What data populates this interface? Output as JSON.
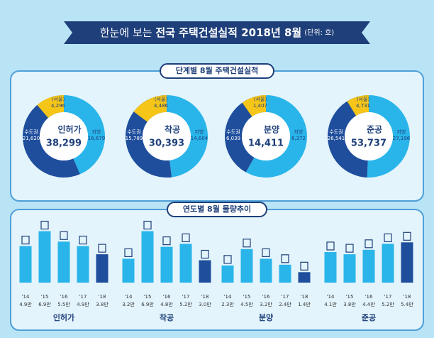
{
  "header": {
    "lead": "한눈에 보는 ",
    "title": "전국 주택건설실적 2018년 8월",
    "unit": "(단위: 호)"
  },
  "sections": [
    "단계별 8월 주택건설실적",
    "연도별 8월 물량추이"
  ],
  "chart_data": [
    {
      "type": "pie",
      "title": "인허가",
      "total": {
        "value": 38299,
        "label": "38,299"
      },
      "categories": [
        "수도권",
        "지방",
        "(서울)"
      ],
      "values": [
        21620,
        16679,
        4296
      ],
      "value_labels": [
        "21,620",
        "16,679",
        "4,296"
      ],
      "colors": [
        "#1f4e9c",
        "#29b5ea",
        "#f5c518"
      ]
    },
    {
      "type": "pie",
      "title": "착공",
      "total": {
        "value": 30393,
        "label": "30,393"
      },
      "categories": [
        "수도권",
        "지방",
        "(서울)"
      ],
      "values": [
        15789,
        14604,
        4486
      ],
      "value_labels": [
        "15,789",
        "14,604",
        "4,486"
      ],
      "colors": [
        "#1f4e9c",
        "#29b5ea",
        "#f5c518"
      ]
    },
    {
      "type": "pie",
      "title": "분양",
      "total": {
        "value": 14411,
        "label": "14,411"
      },
      "categories": [
        "수도권",
        "지방",
        "(서울)"
      ],
      "values": [
        6039,
        8372,
        1407
      ],
      "value_labels": [
        "6,039",
        "8,372",
        "1,407"
      ],
      "colors": [
        "#1f4e9c",
        "#29b5ea",
        "#f5c518"
      ]
    },
    {
      "type": "pie",
      "title": "준공",
      "total": {
        "value": 53737,
        "label": "53,737"
      },
      "categories": [
        "수도권",
        "지방",
        "(서울)"
      ],
      "values": [
        26541,
        27196,
        4731
      ],
      "value_labels": [
        "26,541",
        "27,196",
        "4,731"
      ],
      "colors": [
        "#1f4e9c",
        "#29b5ea",
        "#f5c518"
      ]
    },
    {
      "type": "bar",
      "title": "인허가",
      "categories": [
        "'14",
        "'15",
        "'16",
        "'17",
        "'18"
      ],
      "values": [
        4.9,
        6.9,
        5.5,
        4.9,
        3.8
      ],
      "value_labels": [
        "4.9만",
        "6.9만",
        "5.5만",
        "4.9만",
        "3.8만"
      ],
      "colors": [
        "#29b5ea",
        "#29b5ea",
        "#29b5ea",
        "#29b5ea",
        "#1f4e9c"
      ]
    },
    {
      "type": "bar",
      "title": "착공",
      "categories": [
        "'14",
        "'15",
        "'16",
        "'17",
        "'18"
      ],
      "values": [
        3.2,
        6.9,
        4.8,
        5.2,
        3.0
      ],
      "value_labels": [
        "3.2만",
        "6.9만",
        "4.8만",
        "5.2만",
        "3.0만"
      ],
      "colors": [
        "#29b5ea",
        "#29b5ea",
        "#29b5ea",
        "#29b5ea",
        "#1f4e9c"
      ]
    },
    {
      "type": "bar",
      "title": "분양",
      "categories": [
        "'14",
        "'15",
        "'16",
        "'17",
        "'18"
      ],
      "values": [
        2.3,
        4.5,
        3.2,
        2.4,
        1.4
      ],
      "value_labels": [
        "2.3만",
        "4.5만",
        "3.2만",
        "2.4만",
        "1.4만"
      ],
      "colors": [
        "#29b5ea",
        "#29b5ea",
        "#29b5ea",
        "#29b5ea",
        "#1f4e9c"
      ]
    },
    {
      "type": "bar",
      "title": "준공",
      "categories": [
        "'14",
        "'15",
        "'16",
        "'17",
        "'18"
      ],
      "values": [
        4.1,
        3.8,
        4.4,
        5.2,
        5.4
      ],
      "value_labels": [
        "4.1만",
        "3.8만",
        "4.4만",
        "5.2만",
        "5.4만"
      ],
      "colors": [
        "#29b5ea",
        "#29b5ea",
        "#29b5ea",
        "#29b5ea",
        "#1f4e9c"
      ]
    }
  ]
}
